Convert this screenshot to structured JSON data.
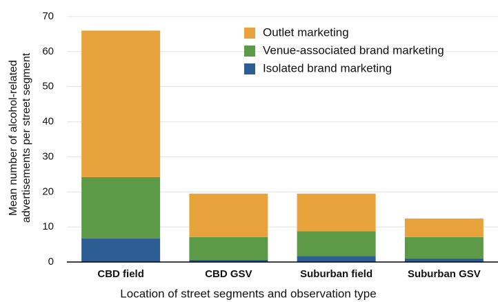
{
  "chart_data": {
    "type": "stacked_bar",
    "categories": [
      "CBD field",
      "CBD GSV",
      "Suburban field",
      "Suburban GSV"
    ],
    "series": [
      {
        "name": "Isolated brand marketing",
        "color": "#2e5d94",
        "values": [
          6.7,
          0.6,
          1.7,
          1.0
        ]
      },
      {
        "name": "Venue-associated brand marketing",
        "color": "#5c9a48",
        "values": [
          17.5,
          6.5,
          7.1,
          6.1
        ]
      },
      {
        "name": "Outlet marketing",
        "color": "#e8a33d",
        "values": [
          41.8,
          12.4,
          10.7,
          5.3
        ]
      }
    ],
    "xlabel": "Location of street segments and observation type",
    "ylabel": [
      "Mean number of alcohol-related",
      "advertisements per street segment"
    ],
    "ylim": [
      0,
      70
    ],
    "yticks": [
      0,
      10,
      20,
      30,
      40,
      50,
      60,
      70
    ],
    "grid": true,
    "legend": "top-right"
  }
}
